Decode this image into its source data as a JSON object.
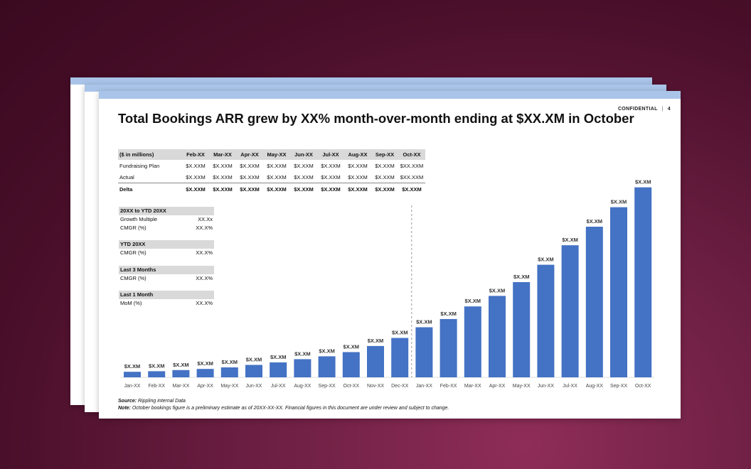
{
  "header": {
    "confidential": "CONFIDENTIAL",
    "separator": "|",
    "page_number": "4"
  },
  "title": "Total Bookings ARR grew by XX% month-over-month ending at $XX.XM in October",
  "table": {
    "columns": [
      "($ in millions)",
      "Feb-XX",
      "Mar-XX",
      "Apr-XX",
      "May-XX",
      "Jun-XX",
      "Jul-XX",
      "Aug-XX",
      "Sep-XX",
      "Oct-XX"
    ],
    "rows": [
      {
        "label": "Fundraising Plan",
        "values": [
          "$X.XXM",
          "$X.XXM",
          "$X.XXM",
          "$X.XXM",
          "$X.XXM",
          "$X.XXM",
          "$X.XXM",
          "$X.XXM",
          "$XX.XXM"
        ]
      },
      {
        "label": "Actual",
        "values": [
          "$X.XXM",
          "$X.XXM",
          "$X.XXM",
          "$X.XXM",
          "$X.XXM",
          "$X.XXM",
          "$X.XXM",
          "$X.XXM",
          "$XX.XXM"
        ]
      },
      {
        "label": "Delta",
        "values": [
          "$X.XXM",
          "$X.XXM",
          "$X.XXM",
          "$X.XXM",
          "$X.XXM",
          "$X.XXM",
          "$X.XXM",
          "$X.XXM",
          "$X.XXM"
        ]
      }
    ]
  },
  "stats": [
    {
      "header": "20XX to YTD 20XX",
      "rows": [
        {
          "label": "Growth Multiple",
          "value": "XX.Xx"
        },
        {
          "label": "CMGR (%)",
          "value": "XX.X%"
        }
      ]
    },
    {
      "header": "YTD 20XX",
      "rows": [
        {
          "label": "CMGR (%)",
          "value": "XX.X%"
        }
      ]
    },
    {
      "header": "Last 3 Months",
      "rows": [
        {
          "label": "CMGR (%)",
          "value": "XX.X%"
        }
      ]
    },
    {
      "header": "Last 1 Month",
      "rows": [
        {
          "label": "MoM (%)",
          "value": "XX.X%"
        }
      ]
    }
  ],
  "chart_data": {
    "type": "bar",
    "categories": [
      "Jan-XX",
      "Feb-XX",
      "Mar-XX",
      "Apr-XX",
      "May-XX",
      "Jun-XX",
      "Jul-XX",
      "Aug-XX",
      "Sep-XX",
      "Oct-XX",
      "Nov-XX",
      "Dec-XX",
      "Jan-XX",
      "Feb-XX",
      "Mar-XX",
      "Apr-XX",
      "May-XX",
      "Jun-XX",
      "Jul-XX",
      "Aug-XX",
      "Sep-XX",
      "Oct-XX"
    ],
    "values": [
      2.9,
      3.2,
      3.8,
      4.4,
      5.2,
      6.5,
      7.8,
      9.5,
      11.0,
      13.2,
      16.4,
      20.6,
      26.2,
      30.5,
      37.1,
      42.6,
      49.8,
      58.9,
      69.1,
      78.8,
      89.0,
      99.4
    ],
    "data_labels": [
      "$X.XM",
      "$X.XM",
      "$X.XM",
      "$X.XM",
      "$X.XM",
      "$X.XM",
      "$X.XM",
      "$X.XM",
      "$X.XM",
      "$X.XM",
      "$X.XM",
      "$X.XM",
      "$X.XM",
      "$X.XM",
      "$X.XM",
      "$X.XM",
      "$X.XM",
      "$X.XM",
      "$X.XM",
      "$X.XM",
      "$X.XM",
      "$X.XM"
    ],
    "ylim": [
      0,
      100
    ],
    "title": "",
    "xlabel": "",
    "ylabel": "",
    "divider_between": [
      "Jan-XX",
      "Feb-XX"
    ],
    "bar_color": "#4472c4",
    "grid": false
  },
  "footnotes": {
    "source_label": "Source:",
    "source_text": "Rippling internal Data",
    "note_label": "Note:",
    "note_text": "October bookings figure is a preliminary estimate as of 20XX-XX-XX.  Financial figures in this document are under review and subject to change."
  }
}
